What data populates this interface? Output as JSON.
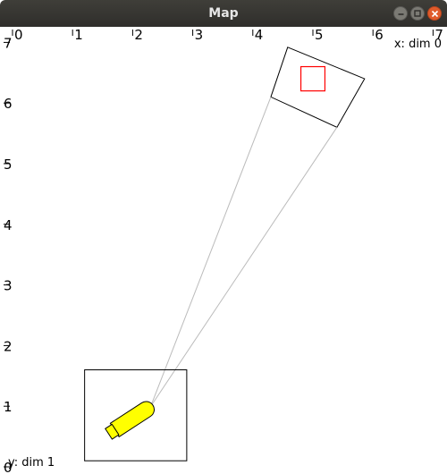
{
  "window": {
    "title": "Map",
    "buttons": {
      "minimize": "minimize",
      "maximize": "maximize",
      "close": "close"
    }
  },
  "plot": {
    "x_axis_label": "x: dim 0",
    "y_axis_label": "y: dim 1",
    "x_ticks": [
      "0",
      "1",
      "2",
      "3",
      "4",
      "5",
      "6",
      "7"
    ],
    "y_ticks": [
      "0",
      "1",
      "2",
      "3",
      "4",
      "5",
      "6",
      "7"
    ],
    "x_range": [
      0,
      7
    ],
    "y_range": [
      0,
      7
    ]
  },
  "scene": {
    "vehicle": {
      "x": 2.0,
      "y": 0.8,
      "color": "#ffff00",
      "outline": "#000000"
    },
    "vehicle_frame": {
      "x_min": 1.2,
      "x_max": 2.9,
      "y_min": 0.1,
      "y_max": 1.6
    },
    "sensor_fov": {
      "color": "#bbbbbb"
    },
    "target_region": {
      "corners": [
        [
          4.58,
          6.92
        ],
        [
          5.86,
          6.4
        ],
        [
          5.4,
          5.6
        ],
        [
          4.3,
          6.1
        ]
      ]
    },
    "target_marker": {
      "x": 5.0,
      "y": 6.4,
      "size": 0.4,
      "color": "#ff0000"
    }
  }
}
